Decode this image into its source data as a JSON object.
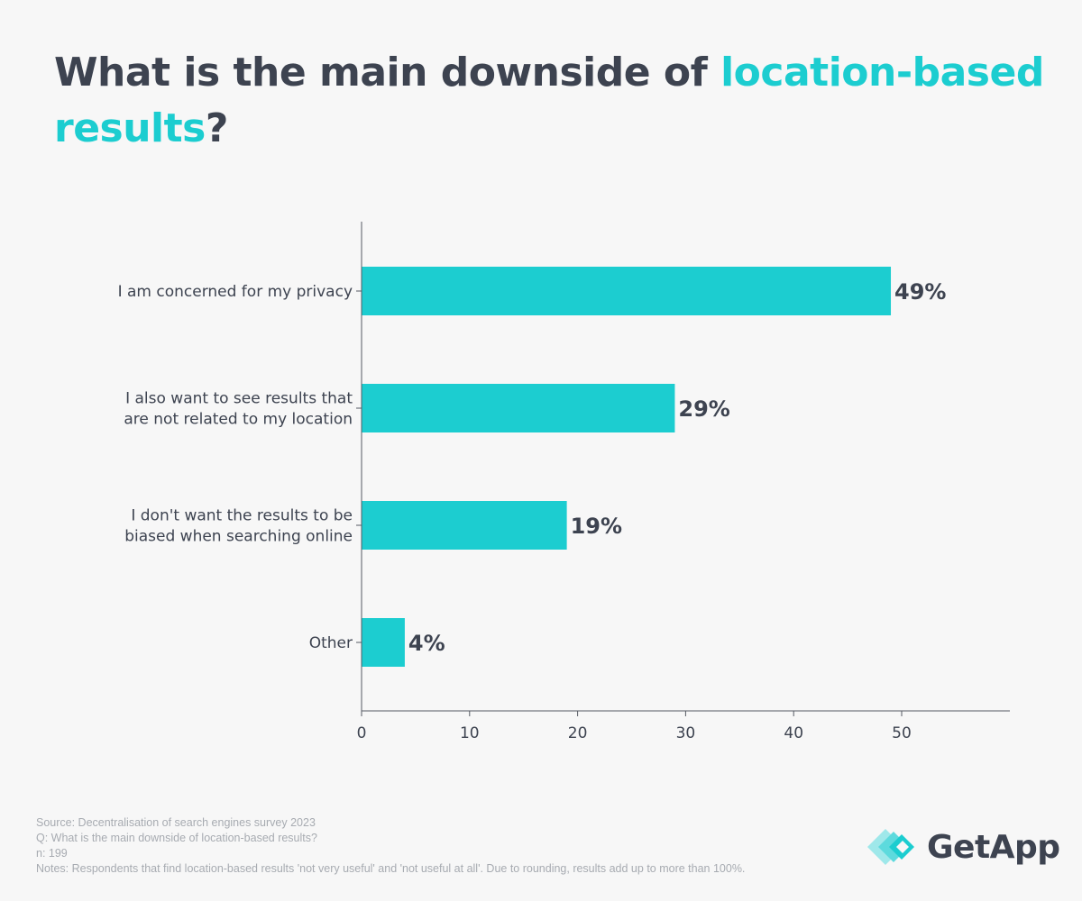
{
  "title": {
    "part1": "What is the main downside of ",
    "accent": "location-based results",
    "part2": "?"
  },
  "colors": {
    "bar": "#1ccdd0",
    "text": "#3d4350",
    "accent": "#1ccdd0",
    "axis": "#555a63",
    "footer": "#a7abb1"
  },
  "chart_data": {
    "type": "bar",
    "orientation": "horizontal",
    "categories": [
      [
        "I am concerned for my privacy"
      ],
      [
        "I also want to see results that",
        "are not related to my location"
      ],
      [
        "I don't want the results to be",
        "biased when searching online"
      ],
      [
        "Other"
      ]
    ],
    "values": [
      49,
      29,
      19,
      4
    ],
    "value_labels": [
      "49%",
      "29%",
      "19%",
      "4%"
    ],
    "xlim": [
      0,
      60
    ],
    "xticks": [
      "0",
      "10",
      "20",
      "30",
      "40",
      "50"
    ],
    "tick_values": [
      0,
      10,
      20,
      30,
      40,
      50
    ],
    "grid": false,
    "legend": "none"
  },
  "footer": {
    "source": "Source: Decentralisation of search engines survey 2023",
    "question": "Q: What is the main downside of location-based results?",
    "n": "n: 199",
    "notes": "Notes: Respondents that find location-based results 'not very useful' and 'not useful at all'. Due to rounding, results add up to more than 100%."
  },
  "logo": {
    "text": "GetApp",
    "icon": "getapp-diamond-icon"
  }
}
